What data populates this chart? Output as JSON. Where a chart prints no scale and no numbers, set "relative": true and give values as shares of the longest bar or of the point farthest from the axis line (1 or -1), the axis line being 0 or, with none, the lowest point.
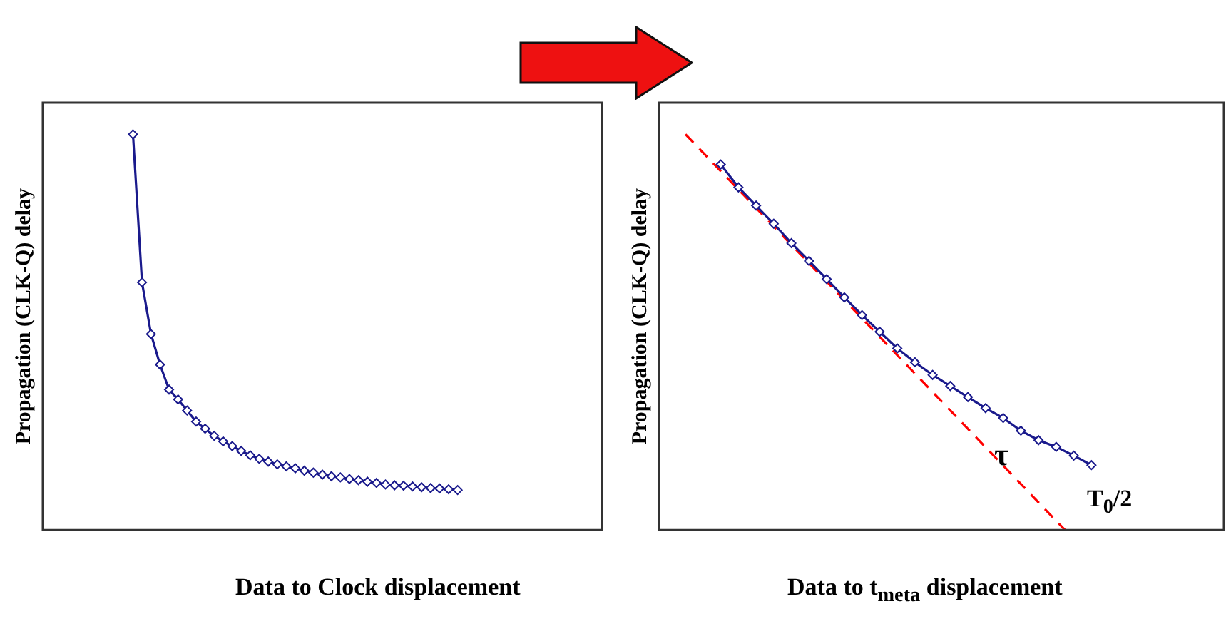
{
  "chart_data": [
    {
      "type": "line",
      "relative": true,
      "ylabel": "Propagation (CLK-Q) delay",
      "xlabel": "Data to Clock displacement",
      "marker": "diamond",
      "legend": false,
      "grid": false,
      "categories": [
        null,
        null,
        null,
        null,
        null,
        null,
        null,
        null,
        null,
        null,
        null,
        null,
        null,
        null,
        null,
        null,
        null,
        null,
        null,
        null,
        null,
        null,
        null,
        null,
        null,
        null,
        null,
        null,
        null,
        null,
        null,
        null,
        null,
        null,
        null,
        null,
        null,
        null,
        null,
        null,
        null,
        null,
        null,
        null,
        null,
        null,
        null,
        null,
        null,
        null,
        null,
        null,
        null,
        null,
        null,
        null,
        null,
        null,
        null,
        null,
        null,
        null,
        null
      ],
      "series": [
        {
          "color": "#1a1a8c",
          "values": [
            null,
            null,
            null,
            null,
            null,
            null,
            null,
            null,
            null,
            null,
            1.0,
            0.626,
            0.495,
            0.418,
            0.355,
            0.33,
            0.302,
            0.274,
            0.256,
            0.238,
            0.224,
            0.212,
            0.2,
            0.189,
            0.18,
            0.173,
            0.166,
            0.161,
            0.156,
            0.15,
            0.145,
            0.14,
            0.136,
            0.133,
            0.129,
            0.126,
            0.122,
            0.119,
            0.115,
            0.113,
            0.112,
            0.11,
            0.108,
            0.106,
            0.105,
            0.103,
            0.101,
            null,
            null,
            null,
            null,
            null,
            null,
            null,
            null,
            null,
            null,
            null,
            null,
            null,
            null,
            null,
            null
          ]
        }
      ]
    },
    {
      "type": "line",
      "relative": true,
      "ylabel": "Propagation (CLK-Q) delay",
      "xlabel": "Data to t$_{meta}$ displacement",
      "legend": false,
      "grid": false,
      "annotations": [
        "τ",
        "T$_{0}$/2"
      ],
      "categories": [
        null,
        null,
        null,
        null,
        null,
        null,
        null,
        null,
        null,
        null,
        null,
        null,
        null,
        null,
        null,
        null,
        null,
        null,
        null,
        null,
        null,
        null,
        null,
        null,
        null,
        null,
        null,
        null,
        null,
        null,
        null,
        null,
        null,
        null,
        null,
        null,
        null,
        null,
        null,
        null,
        null,
        null,
        null,
        null,
        null,
        null,
        null,
        null,
        null,
        null,
        null,
        null,
        null,
        null,
        null,
        null,
        null,
        null,
        null,
        null,
        null,
        null,
        null,
        null,
        null
      ],
      "series": [
        {
          "color": "#1a1a8c",
          "marker": "diamond",
          "line_style": "solid",
          "values": [
            null,
            null,
            null,
            null,
            null,
            null,
            null,
            0.924,
            null,
            0.866,
            null,
            0.82,
            null,
            0.774,
            null,
            0.725,
            null,
            0.68,
            null,
            0.634,
            null,
            0.588,
            null,
            0.543,
            null,
            0.501,
            null,
            0.459,
            null,
            0.424,
            null,
            0.392,
            null,
            0.364,
            null,
            0.336,
            null,
            0.308,
            null,
            0.283,
            null,
            0.251,
            null,
            0.227,
            null,
            0.21,
            null,
            0.188,
            null,
            0.164,
            null,
            null,
            null,
            null,
            null,
            null,
            null,
            null,
            null,
            null,
            null,
            null,
            null,
            null,
            null
          ]
        },
        {
          "color": "#ff0000",
          "marker": "none",
          "line_style": "dashed",
          "values": [
            null,
            null,
            null,
            1.0,
            null,
            null,
            null,
            null,
            null,
            null,
            null,
            null,
            null,
            null,
            null,
            null,
            null,
            null,
            null,
            null,
            null,
            null,
            null,
            null,
            null,
            null,
            null,
            null,
            null,
            null,
            null,
            null,
            null,
            null,
            null,
            null,
            null,
            null,
            null,
            null,
            null,
            null,
            null,
            null,
            null,
            null,
            0.0,
            null,
            null,
            null,
            null,
            null,
            null,
            null,
            null,
            null,
            null,
            null,
            null,
            null,
            null,
            null,
            null,
            null,
            null
          ]
        }
      ]
    }
  ]
}
